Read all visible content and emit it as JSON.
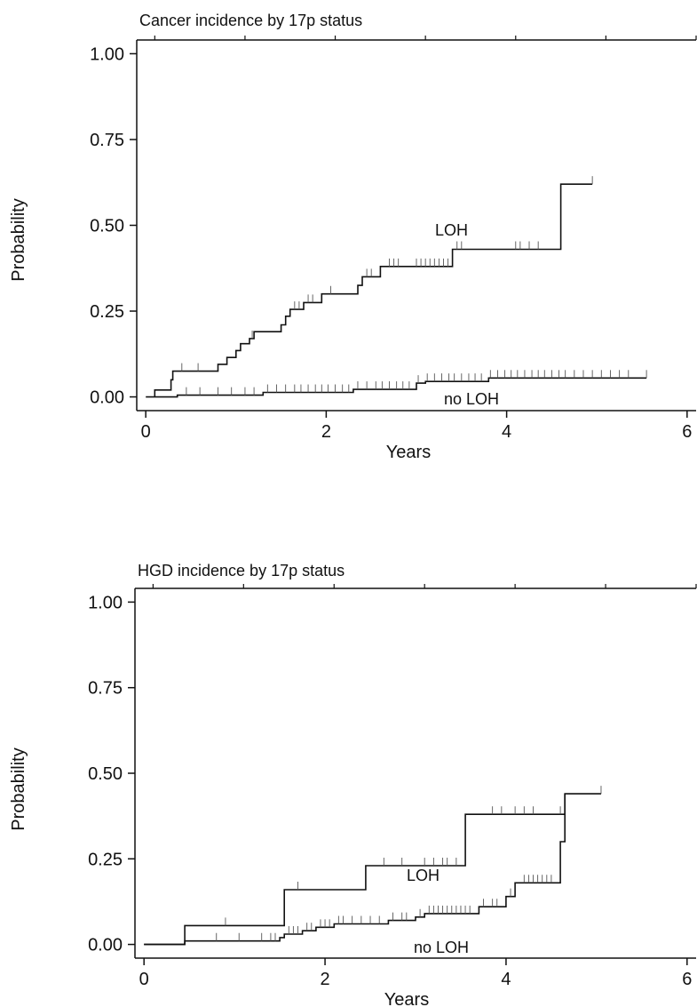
{
  "chart_data": [
    {
      "type": "line",
      "title": "Cancer incidence by 17p status",
      "xlabel": "Years",
      "ylabel": "Probability",
      "xlim": [
        -0.1,
        6.1
      ],
      "ylim": [
        -0.04,
        1.04
      ],
      "xticks": [
        0,
        2,
        4,
        6
      ],
      "yticks": [
        "0.00",
        "0.25",
        "0.50",
        "0.75",
        "1.00"
      ],
      "top_ticks": [
        0.1,
        1.1,
        2.1,
        3.1,
        4.1,
        5.1,
        6.1
      ],
      "grid": false,
      "series": [
        {
          "name": "LOH",
          "step_points": [
            [
              0.1,
              0
            ],
            [
              0.1,
              0.02
            ],
            [
              0.28,
              0.02
            ],
            [
              0.28,
              0.05
            ],
            [
              0.3,
              0.05
            ],
            [
              0.3,
              0.075
            ],
            [
              0.8,
              0.075
            ],
            [
              0.8,
              0.095
            ],
            [
              0.9,
              0.095
            ],
            [
              0.9,
              0.115
            ],
            [
              1.0,
              0.115
            ],
            [
              1.0,
              0.135
            ],
            [
              1.05,
              0.135
            ],
            [
              1.05,
              0.155
            ],
            [
              1.15,
              0.155
            ],
            [
              1.15,
              0.17
            ],
            [
              1.2,
              0.17
            ],
            [
              1.2,
              0.19
            ],
            [
              1.5,
              0.19
            ],
            [
              1.5,
              0.21
            ],
            [
              1.55,
              0.21
            ],
            [
              1.55,
              0.235
            ],
            [
              1.6,
              0.235
            ],
            [
              1.6,
              0.255
            ],
            [
              1.75,
              0.255
            ],
            [
              1.75,
              0.275
            ],
            [
              1.95,
              0.275
            ],
            [
              1.95,
              0.3
            ],
            [
              2.35,
              0.3
            ],
            [
              2.35,
              0.325
            ],
            [
              2.4,
              0.325
            ],
            [
              2.4,
              0.35
            ],
            [
              2.6,
              0.35
            ],
            [
              2.6,
              0.38
            ],
            [
              3.4,
              0.38
            ],
            [
              3.4,
              0.43
            ],
            [
              4.6,
              0.43
            ],
            [
              4.6,
              0.62
            ],
            [
              4.95,
              0.62
            ]
          ],
          "censor": [
            0.4,
            0.58,
            1.18,
            1.65,
            1.7,
            1.8,
            1.85,
            2.05,
            2.45,
            2.5,
            2.7,
            2.75,
            2.8,
            3.0,
            3.05,
            3.1,
            3.15,
            3.2,
            3.25,
            3.3,
            3.35,
            3.45,
            3.5,
            4.1,
            4.15,
            4.25,
            4.35,
            4.95
          ]
        },
        {
          "name": "no LOH",
          "step_points": [
            [
              0,
              0
            ],
            [
              0.35,
              0
            ],
            [
              0.35,
              0.005
            ],
            [
              1.3,
              0.005
            ],
            [
              1.3,
              0.013
            ],
            [
              2.3,
              0.013
            ],
            [
              2.3,
              0.022
            ],
            [
              3.0,
              0.022
            ],
            [
              3.0,
              0.04
            ],
            [
              3.1,
              0.04
            ],
            [
              3.1,
              0.045
            ],
            [
              3.8,
              0.045
            ],
            [
              3.8,
              0.055
            ],
            [
              5.55,
              0.055
            ]
          ],
          "censor": [
            0.45,
            0.6,
            0.8,
            0.95,
            1.1,
            1.2,
            1.35,
            1.45,
            1.55,
            1.65,
            1.72,
            1.8,
            1.88,
            1.95,
            2.02,
            2.1,
            2.18,
            2.25,
            2.35,
            2.45,
            2.55,
            2.62,
            2.7,
            2.78,
            2.85,
            2.92,
            3.02,
            3.12,
            3.2,
            3.28,
            3.36,
            3.42,
            3.5,
            3.58,
            3.65,
            3.72,
            3.82,
            3.9,
            3.98,
            4.05,
            4.12,
            4.2,
            4.28,
            4.35,
            4.42,
            4.5,
            4.58,
            4.65,
            4.75,
            4.85,
            4.95,
            5.05,
            5.15,
            5.25,
            5.35,
            5.55
          ]
        }
      ]
    },
    {
      "type": "line",
      "title": "HGD incidence by 17p status",
      "xlabel": "Years",
      "ylabel": "Probability",
      "xlim": [
        -0.1,
        6.1
      ],
      "ylim": [
        -0.04,
        1.04
      ],
      "xticks": [
        0,
        2,
        4,
        6
      ],
      "yticks": [
        "0.00",
        "0.25",
        "0.50",
        "0.75",
        "1.00"
      ],
      "top_ticks": [
        0.1,
        1.1,
        2.1,
        3.1,
        4.1,
        5.1,
        6.1
      ],
      "grid": false,
      "series": [
        {
          "name": "LOH",
          "step_points": [
            [
              0,
              0
            ],
            [
              0.45,
              0
            ],
            [
              0.45,
              0.055
            ],
            [
              1.55,
              0.055
            ],
            [
              1.55,
              0.16
            ],
            [
              2.45,
              0.16
            ],
            [
              2.45,
              0.23
            ],
            [
              3.55,
              0.23
            ],
            [
              3.55,
              0.38
            ],
            [
              4.65,
              0.38
            ],
            [
              4.65,
              0.44
            ],
            [
              5.05,
              0.44
            ]
          ],
          "censor": [
            0.9,
            1.7,
            2.65,
            2.85,
            3.1,
            3.2,
            3.3,
            3.35,
            3.45,
            3.85,
            3.95,
            4.1,
            4.2,
            4.3,
            4.6,
            5.05
          ]
        },
        {
          "name": "no LOH",
          "step_points": [
            [
              0,
              0
            ],
            [
              0.45,
              0
            ],
            [
              0.45,
              0.01
            ],
            [
              1.5,
              0.01
            ],
            [
              1.5,
              0.02
            ],
            [
              1.55,
              0.02
            ],
            [
              1.55,
              0.03
            ],
            [
              1.75,
              0.03
            ],
            [
              1.75,
              0.04
            ],
            [
              1.9,
              0.04
            ],
            [
              1.9,
              0.05
            ],
            [
              2.1,
              0.05
            ],
            [
              2.1,
              0.06
            ],
            [
              2.7,
              0.06
            ],
            [
              2.7,
              0.07
            ],
            [
              3.0,
              0.07
            ],
            [
              3.0,
              0.08
            ],
            [
              3.1,
              0.08
            ],
            [
              3.1,
              0.09
            ],
            [
              3.7,
              0.09
            ],
            [
              3.7,
              0.11
            ],
            [
              4.0,
              0.11
            ],
            [
              4.0,
              0.14
            ],
            [
              4.1,
              0.14
            ],
            [
              4.1,
              0.18
            ],
            [
              4.6,
              0.18
            ],
            [
              4.6,
              0.3
            ],
            [
              4.65,
              0.3
            ],
            [
              4.65,
              0.44
            ]
          ],
          "censor": [
            0.8,
            1.05,
            1.3,
            1.4,
            1.45,
            1.6,
            1.65,
            1.7,
            1.8,
            1.85,
            1.95,
            2.0,
            2.05,
            2.15,
            2.2,
            2.3,
            2.4,
            2.5,
            2.6,
            2.75,
            2.85,
            2.9,
            3.05,
            3.15,
            3.2,
            3.25,
            3.3,
            3.35,
            3.4,
            3.45,
            3.5,
            3.55,
            3.6,
            3.75,
            3.85,
            3.9,
            4.05,
            4.2,
            4.25,
            4.3,
            4.35,
            4.4,
            4.45,
            4.5
          ]
        }
      ]
    }
  ]
}
